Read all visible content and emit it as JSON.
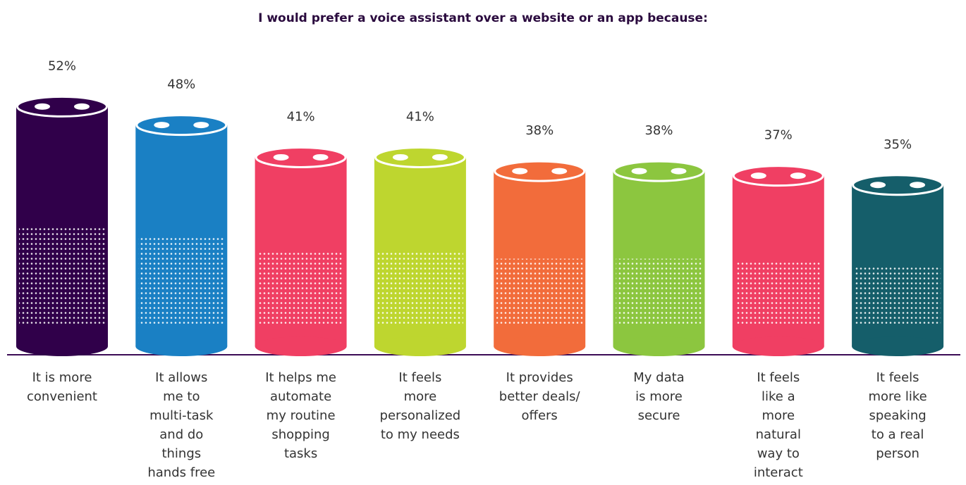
{
  "chart_data": {
    "type": "bar",
    "title": "I would prefer a voice assistant over a website or an app because:",
    "categories": [
      "It is more\nconvenient",
      "It allows\nme to\nmulti-task\nand do\nthings\nhands free",
      "It helps me\nautomate\nmy routine\nshopping\ntasks",
      "It feels\nmore\npersonalized\nto my needs",
      "It provides\nbetter deals/\noffers",
      "My data\nis more\nsecure",
      "It feels\nlike a\nmore\nnatural\nway to\ninteract",
      "It feels\nmore like\nspeaking\nto a real\nperson"
    ],
    "values": [
      52,
      48,
      41,
      41,
      38,
      38,
      37,
      35
    ],
    "value_labels": [
      "52%",
      "48%",
      "41%",
      "41%",
      "38%",
      "38%",
      "37%",
      "35%"
    ],
    "colors": [
      "#30004a",
      "#1a80c4",
      "#f03f63",
      "#bed62f",
      "#f26c3b",
      "#8cc63f",
      "#f03f63",
      "#155e6a"
    ]
  }
}
